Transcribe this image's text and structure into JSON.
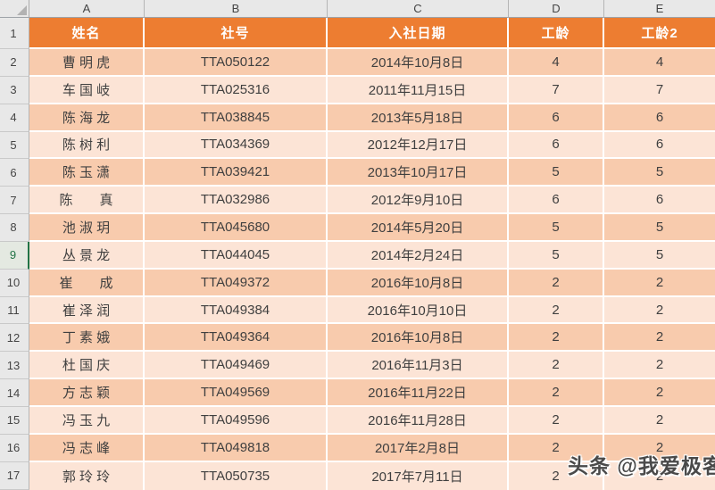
{
  "column_headers": [
    "A",
    "B",
    "C",
    "D",
    "E"
  ],
  "row_numbers": [
    "1",
    "2",
    "3",
    "4",
    "5",
    "6",
    "7",
    "8",
    "9",
    "10",
    "11",
    "12",
    "13",
    "14",
    "15",
    "16",
    "17"
  ],
  "selected_row": "9",
  "table": {
    "headers": [
      "姓名",
      "社号",
      "入社日期",
      "工龄",
      "工龄2"
    ],
    "rows": [
      {
        "name": "曹 明 虎",
        "society_no": "TTA050122",
        "join_date": "2014年10月8日",
        "service_years": "4",
        "service_years2": "4"
      },
      {
        "name": "车 国 岐",
        "society_no": "TTA025316",
        "join_date": "2011年11月15日",
        "service_years": "7",
        "service_years2": "7"
      },
      {
        "name": "陈 海 龙",
        "society_no": "TTA038845",
        "join_date": "2013年5月18日",
        "service_years": "6",
        "service_years2": "6"
      },
      {
        "name": "陈 树 利",
        "society_no": "TTA034369",
        "join_date": "2012年12月17日",
        "service_years": "6",
        "service_years2": "6"
      },
      {
        "name": "陈 玉 潇",
        "society_no": "TTA039421",
        "join_date": "2013年10月17日",
        "service_years": "5",
        "service_years2": "5"
      },
      {
        "name": "陈　　真",
        "society_no": "TTA032986",
        "join_date": "2012年9月10日",
        "service_years": "6",
        "service_years2": "6"
      },
      {
        "name": "池 淑 玥",
        "society_no": "TTA045680",
        "join_date": "2014年5月20日",
        "service_years": "5",
        "service_years2": "5"
      },
      {
        "name": "丛 景 龙",
        "society_no": "TTA044045",
        "join_date": "2014年2月24日",
        "service_years": "5",
        "service_years2": "5"
      },
      {
        "name": "崔　　成",
        "society_no": "TTA049372",
        "join_date": "2016年10月8日",
        "service_years": "2",
        "service_years2": "2"
      },
      {
        "name": "崔 泽 润",
        "society_no": "TTA049384",
        "join_date": "2016年10月10日",
        "service_years": "2",
        "service_years2": "2"
      },
      {
        "name": "丁 素 娥",
        "society_no": "TTA049364",
        "join_date": "2016年10月8日",
        "service_years": "2",
        "service_years2": "2"
      },
      {
        "name": "杜 国 庆",
        "society_no": "TTA049469",
        "join_date": "2016年11月3日",
        "service_years": "2",
        "service_years2": "2"
      },
      {
        "name": "方 志 颖",
        "society_no": "TTA049569",
        "join_date": "2016年11月22日",
        "service_years": "2",
        "service_years2": "2"
      },
      {
        "name": "冯 玉 九",
        "society_no": "TTA049596",
        "join_date": "2016年11月28日",
        "service_years": "2",
        "service_years2": "2"
      },
      {
        "name": "冯 志 峰",
        "society_no": "TTA049818",
        "join_date": "2017年2月8日",
        "service_years": "2",
        "service_years2": "2"
      },
      {
        "name": "郭 玲 玲",
        "society_no": "TTA050735",
        "join_date": "2017年7月11日",
        "service_years": "2",
        "service_years2": "2"
      }
    ]
  },
  "watermark": {
    "text": "头条 @我爱极客"
  },
  "colors": {
    "header_fill": "#ED7D31",
    "band_dark": "#F8CBAD",
    "band_light": "#FCE4D6",
    "selection_green": "#217346",
    "frame_gray": "#E8E8E8"
  }
}
